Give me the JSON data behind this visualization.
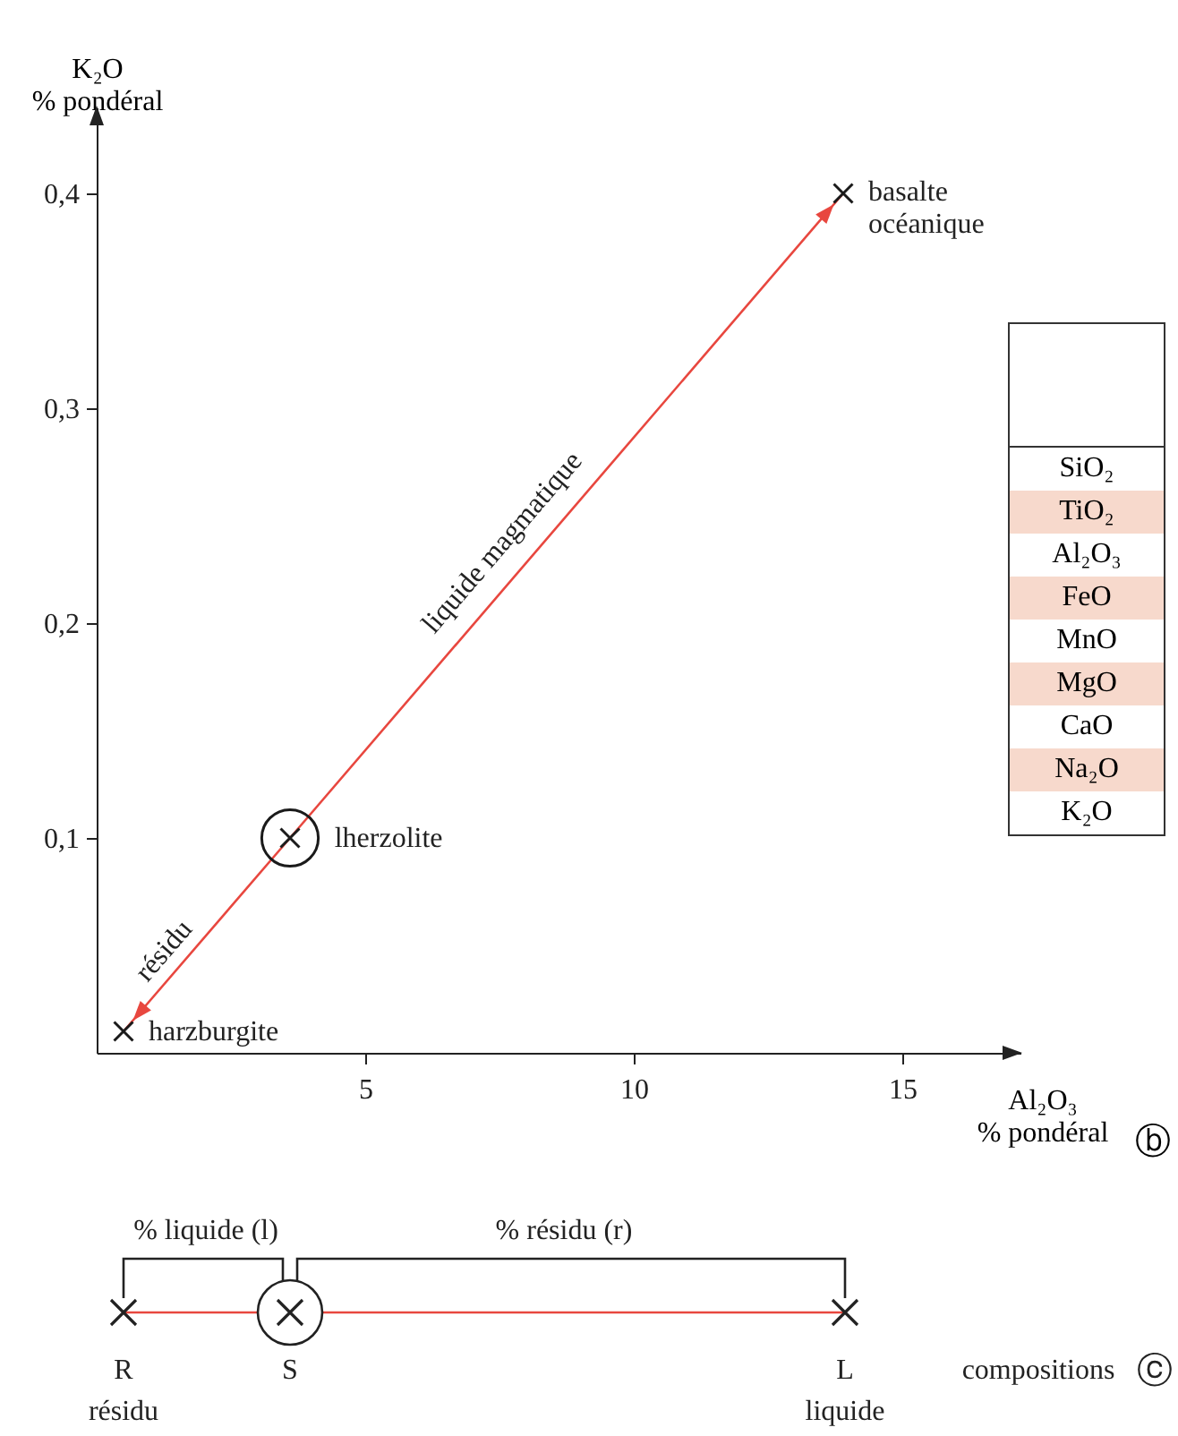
{
  "chart_data": [
    {
      "type": "scatter",
      "xlabel": "Al₂O₃\n% pondéral",
      "ylabel": "K₂O\n% pondéral",
      "xlim": [
        0,
        17.2
      ],
      "ylim": [
        0,
        0.44
      ],
      "xticks": [
        5,
        10,
        15
      ],
      "yticks": [
        {
          "value": 0.1,
          "label": "0,1"
        },
        {
          "value": 0.2,
          "label": "0,2"
        },
        {
          "value": 0.3,
          "label": "0,3"
        },
        {
          "value": 0.4,
          "label": "0,4"
        }
      ],
      "grid": false,
      "series": [
        {
          "type": "line",
          "color": "#e8473f",
          "marker": "none",
          "x": [
            0.5,
            3.6,
            13.9
          ],
          "values": [
            0.01,
            0.1,
            0.4
          ]
        },
        {
          "type": "scatter",
          "color": "#1a1a1a",
          "marker": "cross",
          "x": [
            0.5,
            3.6,
            13.9
          ],
          "values": [
            0.01,
            0.1,
            0.4
          ]
        },
        {
          "type": "scatter",
          "color": "#1a1a1a",
          "x": [
            3.6
          ],
          "values": [
            0.1
          ]
        }
      ],
      "annotations": [
        {
          "text": "harzburgite",
          "x": 0.5,
          "y": 0.01
        },
        {
          "text": "lherzolite",
          "x": 3.6,
          "y": 0.1
        },
        {
          "text": "basalte\nocéanique",
          "x": 13.9,
          "y": 0.4
        },
        {
          "text": "liquide magmatique",
          "x": 7.9,
          "y": 0.23
        },
        {
          "text": "résidu",
          "x": 1.6,
          "y": 0.04
        },
        "ⓑ"
      ]
    },
    {
      "type": "other",
      "annotations": [
        "% liquide (l)",
        "% résidu (r)",
        "R",
        "résidu",
        "S",
        "L",
        "liquide",
        "compositions",
        "ⓒ"
      ]
    },
    {
      "type": "other",
      "annotations": [
        "SiO₂",
        "TiO₂",
        "Al₂O₃",
        "FeO",
        "MnO",
        "MgO",
        "CaO",
        "Na₂O",
        "K₂O"
      ]
    }
  ]
}
